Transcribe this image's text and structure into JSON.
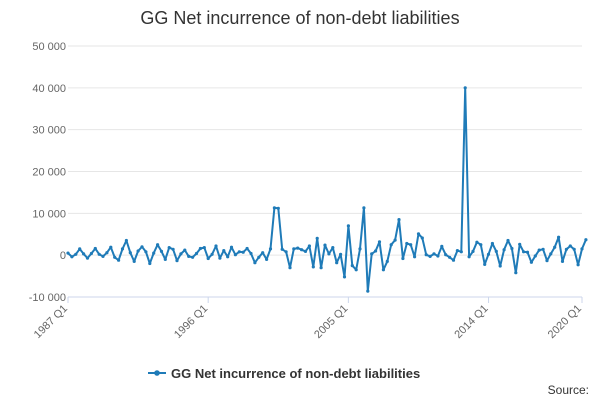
{
  "chart_data": {
    "type": "line",
    "title": "GG Net incurrence of non-debt liabilities",
    "xlabel": "",
    "ylabel": "",
    "x_tick_labels": [
      "1987 Q1",
      "1996 Q1",
      "2005 Q1",
      "2014 Q1",
      "2020 Q1"
    ],
    "x_tick_positions": [
      0,
      36,
      72,
      108,
      132
    ],
    "y_tick_labels": [
      "-10 000",
      "0",
      "10 000",
      "20 000",
      "30 000",
      "40 000",
      "50 000"
    ],
    "y_tick_values": [
      -10000,
      0,
      10000,
      20000,
      30000,
      40000,
      50000
    ],
    "ylim": [
      -10000,
      50000
    ],
    "xlim": [
      0,
      132
    ],
    "grid": true,
    "legend_position": "bottom",
    "series": [
      {
        "name": "GG Net incurrence of non-debt liabilities",
        "color": "#1f7bb8",
        "values": [
          500,
          -400,
          200,
          1500,
          300,
          -700,
          400,
          1600,
          200,
          -300,
          600,
          1900,
          -500,
          -1200,
          1500,
          3500,
          600,
          -1500,
          1000,
          2000,
          800,
          -2000,
          500,
          2500,
          900,
          -1000,
          1800,
          1400,
          -1300,
          300,
          1200,
          -300,
          -500,
          400,
          1600,
          1800,
          -800,
          200,
          2200,
          -700,
          1100,
          -400,
          1900,
          100,
          800,
          700,
          1600,
          400,
          -1800,
          -500,
          600,
          -1000,
          1500,
          11300,
          11200,
          1400,
          800,
          -3000,
          1500,
          1700,
          1300,
          900,
          2200,
          -2800,
          4000,
          -3000,
          2400,
          300,
          1800,
          -1800,
          200,
          -5200,
          7000,
          -2500,
          -3500,
          1500,
          11300,
          -8600,
          300,
          1000,
          3200,
          -3500,
          -1500,
          2500,
          3600,
          8500,
          -800,
          2800,
          2500,
          -400,
          5100,
          4100,
          100,
          -300,
          300,
          -200,
          2100,
          100,
          -500,
          -1200,
          1100,
          800,
          40000,
          -400,
          900,
          3100,
          2500,
          -2200,
          200,
          2800,
          900,
          -2600,
          1300,
          3500,
          1600,
          -4200,
          2600,
          800,
          700,
          -1700,
          -200,
          1200,
          1400,
          -1300,
          300,
          1900,
          4300,
          -1500,
          1400,
          2200,
          1400,
          -2300,
          1500,
          3700
        ]
      }
    ]
  },
  "legend": {
    "label": "GG Net incurrence of non-debt liabilities"
  },
  "source": {
    "label": "Source:"
  }
}
